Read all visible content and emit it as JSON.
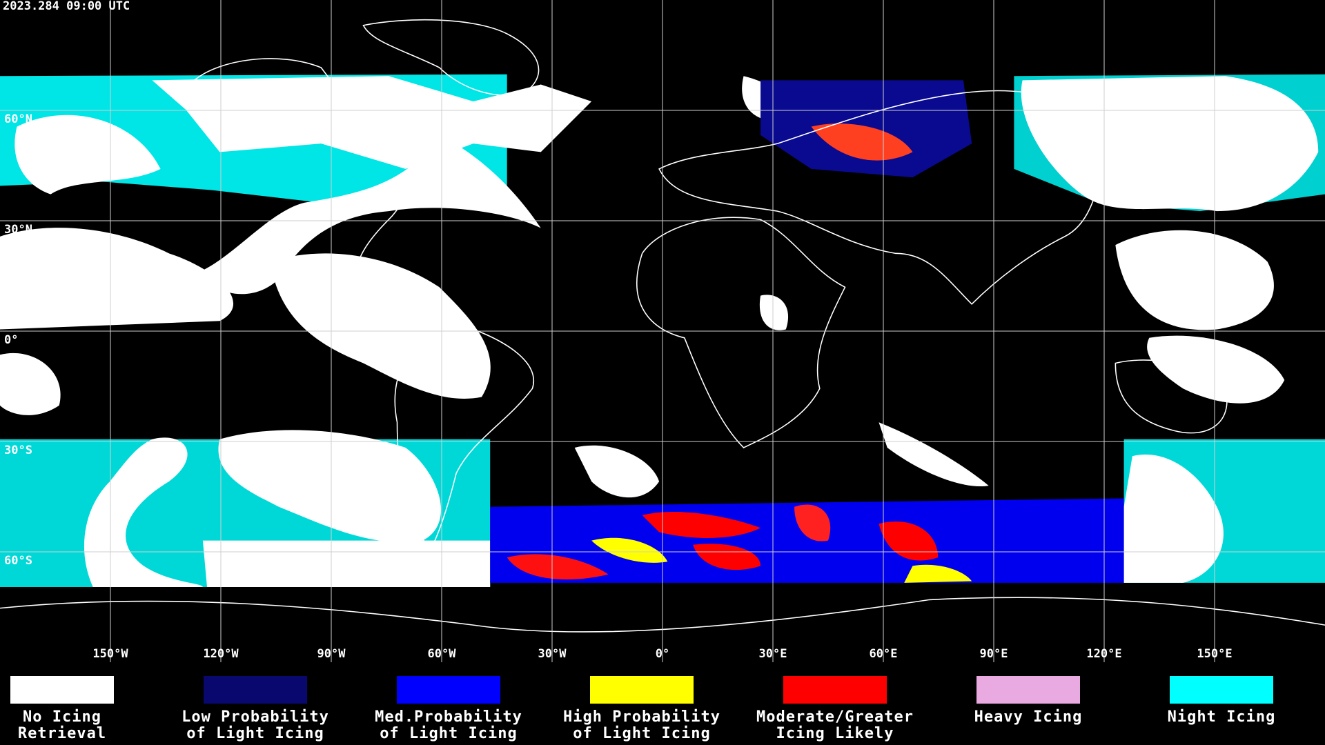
{
  "header": {
    "timestamp": "2023.284 09:00 UTC"
  },
  "map": {
    "latitude_labels": [
      "60°N",
      "30°N",
      "0°",
      "30°S",
      "60°S"
    ],
    "longitude_labels": [
      "150°W",
      "120°W",
      "90°W",
      "60°W",
      "30°W",
      "0°",
      "30°E",
      "60°E",
      "90°E",
      "120°E",
      "150°E"
    ]
  },
  "legend": [
    {
      "color": "#ffffff",
      "label": [
        "No Icing",
        "Retrieval"
      ]
    },
    {
      "color": "#08086e",
      "label": [
        "Low Probability",
        "of Light Icing"
      ]
    },
    {
      "color": "#0000ff",
      "label": [
        "Med.Probability",
        "of Light Icing"
      ]
    },
    {
      "color": "#ffff00",
      "label": [
        "High Probability",
        "of Light Icing"
      ]
    },
    {
      "color": "#ff0000",
      "label": [
        "Moderate/Greater",
        "Icing Likely"
      ]
    },
    {
      "color": "#e8aae0",
      "label": [
        "Heavy Icing"
      ]
    },
    {
      "color": "#00ffff",
      "label": [
        "Night Icing"
      ]
    }
  ]
}
